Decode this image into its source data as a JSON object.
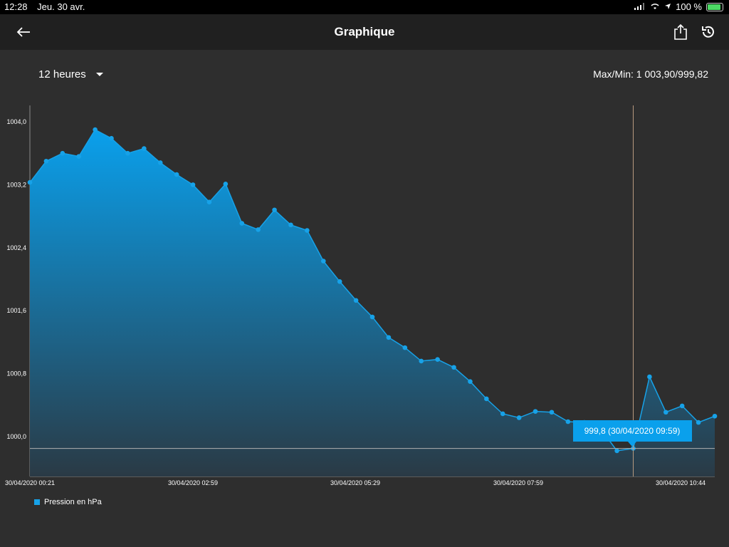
{
  "status": {
    "time": "12:28",
    "date": "Jeu. 30 avr.",
    "battery": "100 %"
  },
  "header": {
    "title": "Graphique",
    "back_icon": "arrow-left-icon",
    "share_icon": "share-icon",
    "history_icon": "history-icon"
  },
  "controls": {
    "period": "12 heures",
    "maxmin": "Max/Min: 1 003,90/999,82"
  },
  "colors": {
    "line": "#17a2e8",
    "fill_top": "#0aa0ec",
    "fill_bottom": "#2a3a45",
    "tooltip_bg": "#0aa0ec",
    "background": "#2e2e2e"
  },
  "tooltip": {
    "text": "999,8 (30/04/2020 09:59)"
  },
  "legend": {
    "label": "Pression en hPa"
  },
  "chart_data": {
    "type": "area",
    "y_ticks": [
      "1004,0",
      "1003,2",
      "1002,4",
      "1001,6",
      "1000,8",
      "1000,0"
    ],
    "x_ticks": [
      "30/04/2020 00:21",
      "30/04/2020 02:59",
      "30/04/2020 05:29",
      "30/04/2020 07:59",
      "30/04/2020 10:44"
    ],
    "ylim": [
      999.5,
      1004.2
    ],
    "series": [
      {
        "name": "Pression en hPa",
        "values": [
          1003.23,
          1003.5,
          1003.6,
          1003.56,
          1003.9,
          1003.79,
          1003.6,
          1003.66,
          1003.48,
          1003.33,
          1003.2,
          1002.98,
          1003.21,
          1002.71,
          1002.63,
          1002.88,
          1002.69,
          1002.62,
          1002.23,
          1001.97,
          1001.73,
          1001.52,
          1001.26,
          1001.13,
          1000.96,
          1000.98,
          1000.88,
          1000.7,
          1000.48,
          1000.29,
          1000.24,
          1000.32,
          1000.31,
          1000.19,
          1000.18,
          1000.1,
          999.82,
          999.85,
          1000.76,
          1000.31,
          1000.39,
          1000.18,
          1000.26
        ]
      }
    ],
    "selected_index": 37,
    "grid": false
  }
}
